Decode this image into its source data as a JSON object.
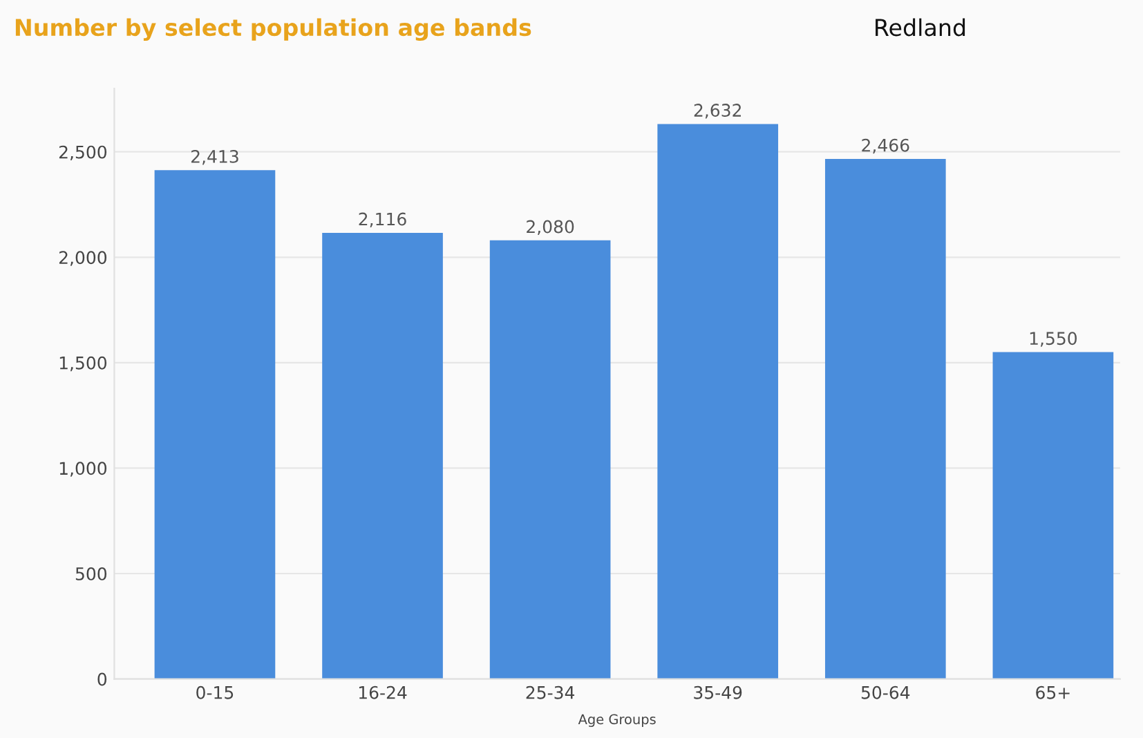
{
  "chart_data": {
    "type": "bar",
    "title": "Number by select population age bands",
    "subtitle": "Redland",
    "xlabel": "Age Groups",
    "categories": [
      "0-15",
      "16-24",
      "25-34",
      "35-49",
      "50-64",
      "65+"
    ],
    "values": [
      2413,
      2116,
      2080,
      2632,
      2466,
      1550
    ],
    "color": "#4a8ddc",
    "value_labels": [
      "2,413",
      "2,116",
      "2,080",
      "2,632",
      "2,466",
      "1,550"
    ],
    "ylim": [
      0,
      2800
    ],
    "yticks": [
      0,
      {
        "value": 500,
        "label": "500"
      },
      {
        "value": 1000,
        "label": "1,000"
      },
      {
        "value": 1500,
        "label": "1,500"
      },
      {
        "value": 2000,
        "label": "2,000"
      },
      {
        "value": 2500,
        "label": "2,500"
      }
    ],
    "grid": "y"
  }
}
